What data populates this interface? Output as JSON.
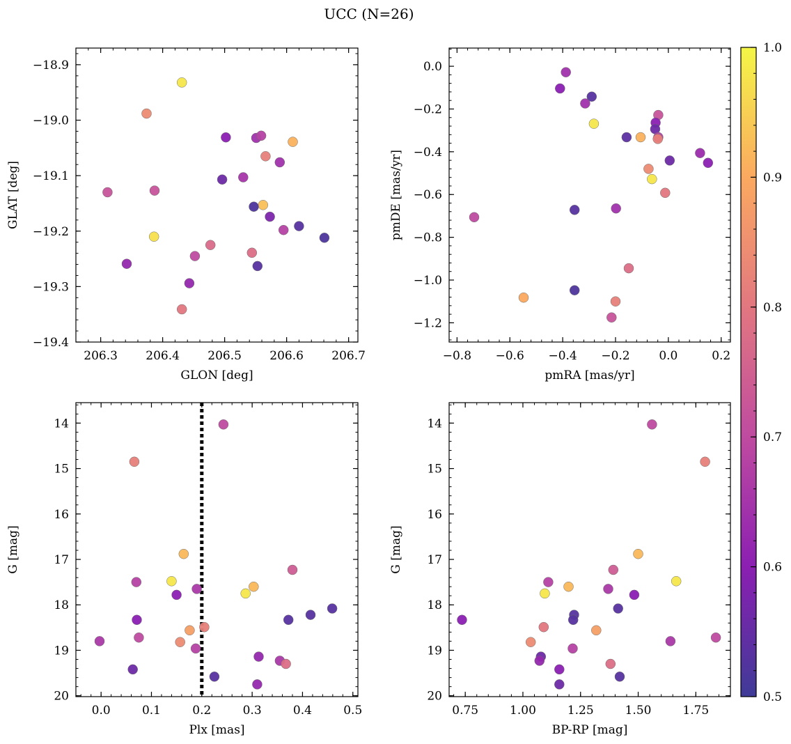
{
  "figure": {
    "title": "UCC (N=26)"
  },
  "colorbar": {
    "min": 0.5,
    "max": 1.0,
    "ticks": [
      0.5,
      0.6,
      0.7,
      0.8,
      0.9,
      1.0
    ],
    "tick_labels": [
      "0.5",
      "0.6",
      "0.7",
      "0.8",
      "0.9",
      "1.0"
    ],
    "colormap": "plasma"
  },
  "chart_data": [
    {
      "type": "scatter",
      "xlabel": "GLON [deg]",
      "ylabel": "GLAT [deg]",
      "xlim": [
        206.26,
        206.715
      ],
      "ylim": [
        -19.4,
        -18.87
      ],
      "xticks": [
        206.3,
        206.4,
        206.5,
        206.6,
        206.7
      ],
      "xtick_labels": [
        "206.3",
        "206.4",
        "206.5",
        "206.6",
        "206.7"
      ],
      "yticks": [
        -18.9,
        -19.0,
        -19.1,
        -19.2,
        -19.3,
        -19.4
      ],
      "ytick_labels": [
        "−18.9",
        "−19.0",
        "−19.1",
        "−19.2",
        "−19.3",
        "−19.4"
      ],
      "points": [
        {
          "x": 206.431,
          "y": -18.932,
          "c": 0.98
        },
        {
          "x": 206.374,
          "y": -18.988,
          "c": 0.84
        },
        {
          "x": 206.502,
          "y": -19.031,
          "c": 0.6
        },
        {
          "x": 206.551,
          "y": -19.032,
          "c": 0.64
        },
        {
          "x": 206.559,
          "y": -19.028,
          "c": 0.68
        },
        {
          "x": 206.61,
          "y": -19.039,
          "c": 0.91
        },
        {
          "x": 206.566,
          "y": -19.065,
          "c": 0.82
        },
        {
          "x": 206.589,
          "y": -19.076,
          "c": 0.64
        },
        {
          "x": 206.496,
          "y": -19.107,
          "c": 0.56
        },
        {
          "x": 206.53,
          "y": -19.103,
          "c": 0.65
        },
        {
          "x": 206.311,
          "y": -19.13,
          "c": 0.72
        },
        {
          "x": 206.387,
          "y": -19.127,
          "c": 0.72
        },
        {
          "x": 206.562,
          "y": -19.153,
          "c": 0.93
        },
        {
          "x": 206.547,
          "y": -19.156,
          "c": 0.52
        },
        {
          "x": 206.573,
          "y": -19.174,
          "c": 0.58
        },
        {
          "x": 206.62,
          "y": -19.191,
          "c": 0.53
        },
        {
          "x": 206.595,
          "y": -19.198,
          "c": 0.68
        },
        {
          "x": 206.386,
          "y": -19.21,
          "c": 0.97
        },
        {
          "x": 206.661,
          "y": -19.212,
          "c": 0.52
        },
        {
          "x": 206.477,
          "y": -19.225,
          "c": 0.77
        },
        {
          "x": 206.544,
          "y": -19.239,
          "c": 0.78
        },
        {
          "x": 206.452,
          "y": -19.245,
          "c": 0.7
        },
        {
          "x": 206.342,
          "y": -19.259,
          "c": 0.62
        },
        {
          "x": 206.553,
          "y": -19.263,
          "c": 0.53
        },
        {
          "x": 206.443,
          "y": -19.294,
          "c": 0.62
        },
        {
          "x": 206.431,
          "y": -19.341,
          "c": 0.8
        }
      ]
    },
    {
      "type": "scatter",
      "xlabel": "pmRA [mas/yr]",
      "ylabel": "pmDE [mas/yr]",
      "xlim": [
        -0.83,
        0.235
      ],
      "ylim": [
        -1.29,
        0.085
      ],
      "xticks": [
        -0.8,
        -0.6,
        -0.4,
        -0.2,
        0.0,
        0.2
      ],
      "xtick_labels": [
        "−0.8",
        "−0.6",
        "−0.4",
        "−0.2",
        "0.0",
        "0.2"
      ],
      "yticks": [
        0.0,
        -0.2,
        -0.4,
        -0.6,
        -0.8,
        -1.0,
        -1.2
      ],
      "ytick_labels": [
        "0.0",
        "−0.2",
        "−0.4",
        "−0.6",
        "−0.8",
        "−1.0",
        "−1.2"
      ],
      "points": [
        {
          "x": -0.388,
          "y": -0.028,
          "c": 0.64
        },
        {
          "x": -0.41,
          "y": -0.104,
          "c": 0.6
        },
        {
          "x": -0.29,
          "y": -0.142,
          "c": 0.53
        },
        {
          "x": -0.315,
          "y": -0.174,
          "c": 0.64
        },
        {
          "x": -0.038,
          "y": -0.228,
          "c": 0.72
        },
        {
          "x": -0.048,
          "y": -0.264,
          "c": 0.6
        },
        {
          "x": -0.282,
          "y": -0.269,
          "c": 0.98
        },
        {
          "x": -0.05,
          "y": -0.294,
          "c": 0.56
        },
        {
          "x": -0.158,
          "y": -0.332,
          "c": 0.54
        },
        {
          "x": -0.105,
          "y": -0.332,
          "c": 0.91
        },
        {
          "x": -0.038,
          "y": -0.332,
          "c": 0.68
        },
        {
          "x": -0.04,
          "y": -0.34,
          "c": 0.82
        },
        {
          "x": 0.12,
          "y": -0.406,
          "c": 0.63
        },
        {
          "x": 0.005,
          "y": -0.441,
          "c": 0.56
        },
        {
          "x": 0.15,
          "y": -0.452,
          "c": 0.6
        },
        {
          "x": -0.075,
          "y": -0.48,
          "c": 0.84
        },
        {
          "x": -0.062,
          "y": -0.528,
          "c": 0.98
        },
        {
          "x": -0.012,
          "y": -0.592,
          "c": 0.8
        },
        {
          "x": -0.355,
          "y": -0.672,
          "c": 0.53
        },
        {
          "x": -0.198,
          "y": -0.665,
          "c": 0.64
        },
        {
          "x": -0.735,
          "y": -0.706,
          "c": 0.7
        },
        {
          "x": -0.15,
          "y": -0.945,
          "c": 0.78
        },
        {
          "x": -0.355,
          "y": -1.048,
          "c": 0.52
        },
        {
          "x": -0.548,
          "y": -1.082,
          "c": 0.9
        },
        {
          "x": -0.2,
          "y": -1.1,
          "c": 0.82
        },
        {
          "x": -0.215,
          "y": -1.175,
          "c": 0.72
        }
      ]
    },
    {
      "type": "scatter",
      "xlabel": "Plx [mas]",
      "ylabel": "G [mag]",
      "xlim": [
        -0.05,
        0.51
      ],
      "ylim": [
        20.02,
        13.55
      ],
      "xticks": [
        0.0,
        0.1,
        0.2,
        0.3,
        0.4,
        0.5
      ],
      "xtick_labels": [
        "0.0",
        "0.1",
        "0.2",
        "0.3",
        "0.4",
        "0.5"
      ],
      "yticks": [
        14,
        15,
        16,
        17,
        18,
        19,
        20
      ],
      "ytick_labels": [
        "14",
        "15",
        "16",
        "17",
        "18",
        "19",
        "20"
      ],
      "vline": {
        "x": 0.2
      },
      "points": [
        {
          "x": 0.243,
          "y": 14.03,
          "c": 0.7
        },
        {
          "x": 0.066,
          "y": 14.85,
          "c": 0.82
        },
        {
          "x": 0.164,
          "y": 16.88,
          "c": 0.92
        },
        {
          "x": 0.38,
          "y": 17.23,
          "c": 0.74
        },
        {
          "x": 0.14,
          "y": 17.48,
          "c": 0.98
        },
        {
          "x": 0.07,
          "y": 17.5,
          "c": 0.68
        },
        {
          "x": 0.303,
          "y": 17.6,
          "c": 0.92
        },
        {
          "x": 0.19,
          "y": 17.65,
          "c": 0.66
        },
        {
          "x": 0.287,
          "y": 17.75,
          "c": 0.98
        },
        {
          "x": 0.15,
          "y": 17.78,
          "c": 0.6
        },
        {
          "x": 0.459,
          "y": 18.08,
          "c": 0.53
        },
        {
          "x": 0.416,
          "y": 18.22,
          "c": 0.53
        },
        {
          "x": 0.071,
          "y": 18.33,
          "c": 0.6
        },
        {
          "x": 0.372,
          "y": 18.33,
          "c": 0.53
        },
        {
          "x": 0.176,
          "y": 18.56,
          "c": 0.88
        },
        {
          "x": 0.205,
          "y": 18.49,
          "c": 0.82
        },
        {
          "x": 0.075,
          "y": 18.72,
          "c": 0.7
        },
        {
          "x": -0.003,
          "y": 18.8,
          "c": 0.66
        },
        {
          "x": 0.157,
          "y": 18.82,
          "c": 0.84
        },
        {
          "x": 0.188,
          "y": 18.96,
          "c": 0.68
        },
        {
          "x": 0.313,
          "y": 19.14,
          "c": 0.62
        },
        {
          "x": 0.355,
          "y": 19.23,
          "c": 0.66
        },
        {
          "x": 0.367,
          "y": 19.3,
          "c": 0.78
        },
        {
          "x": 0.063,
          "y": 19.42,
          "c": 0.56
        },
        {
          "x": 0.225,
          "y": 19.58,
          "c": 0.53
        },
        {
          "x": 0.31,
          "y": 19.75,
          "c": 0.62
        }
      ]
    },
    {
      "type": "scatter",
      "xlabel": "BP-RP [mag]",
      "ylabel": "G [mag]",
      "xlim": [
        0.68,
        1.9
      ],
      "ylim": [
        20.02,
        13.55
      ],
      "xticks": [
        0.75,
        1.0,
        1.25,
        1.5,
        1.75
      ],
      "xtick_labels": [
        "0.75",
        "1.00",
        "1.25",
        "1.50",
        "1.75"
      ],
      "yticks": [
        14,
        15,
        16,
        17,
        18,
        19,
        20
      ],
      "ytick_labels": [
        "14",
        "15",
        "16",
        "17",
        "18",
        "19",
        "20"
      ],
      "points": [
        {
          "x": 1.56,
          "y": 14.03,
          "c": 0.7
        },
        {
          "x": 1.79,
          "y": 14.85,
          "c": 0.82
        },
        {
          "x": 1.5,
          "y": 16.88,
          "c": 0.92
        },
        {
          "x": 1.392,
          "y": 17.23,
          "c": 0.74
        },
        {
          "x": 1.11,
          "y": 17.5,
          "c": 0.68
        },
        {
          "x": 1.665,
          "y": 17.48,
          "c": 0.98
        },
        {
          "x": 1.198,
          "y": 17.6,
          "c": 0.92
        },
        {
          "x": 1.37,
          "y": 17.65,
          "c": 0.66
        },
        {
          "x": 1.095,
          "y": 17.75,
          "c": 0.98
        },
        {
          "x": 1.483,
          "y": 17.78,
          "c": 0.6
        },
        {
          "x": 1.413,
          "y": 18.08,
          "c": 0.53
        },
        {
          "x": 1.222,
          "y": 18.22,
          "c": 0.53
        },
        {
          "x": 1.218,
          "y": 18.33,
          "c": 0.53
        },
        {
          "x": 0.736,
          "y": 18.33,
          "c": 0.6
        },
        {
          "x": 1.09,
          "y": 18.49,
          "c": 0.8
        },
        {
          "x": 1.318,
          "y": 18.56,
          "c": 0.88
        },
        {
          "x": 1.837,
          "y": 18.72,
          "c": 0.7
        },
        {
          "x": 1.64,
          "y": 18.8,
          "c": 0.66
        },
        {
          "x": 1.034,
          "y": 18.82,
          "c": 0.84
        },
        {
          "x": 1.216,
          "y": 18.96,
          "c": 0.68
        },
        {
          "x": 1.078,
          "y": 19.14,
          "c": 0.56
        },
        {
          "x": 1.072,
          "y": 19.23,
          "c": 0.62
        },
        {
          "x": 1.38,
          "y": 19.3,
          "c": 0.78
        },
        {
          "x": 1.158,
          "y": 19.42,
          "c": 0.6
        },
        {
          "x": 1.42,
          "y": 19.58,
          "c": 0.53
        },
        {
          "x": 1.158,
          "y": 19.75,
          "c": 0.56
        }
      ]
    }
  ]
}
